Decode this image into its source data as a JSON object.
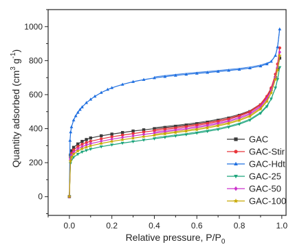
{
  "chart_data": {
    "type": "line",
    "title": "",
    "xlabel_main": "Relative pressure, P/P",
    "xlabel_sub": "0",
    "ylabel_main": "Quantity adsorbed (cm",
    "ylabel_sup1": "3",
    "ylabel_mid": " g",
    "ylabel_sup2": "-1",
    "ylabel_end": ")",
    "xlim": [
      -0.1,
      1.02
    ],
    "ylim": [
      -110,
      1100
    ],
    "x_ticks": [
      "0.0",
      "0.2",
      "0.4",
      "0.6",
      "0.8",
      "1.0"
    ],
    "y_ticks": [
      "0",
      "200",
      "400",
      "600",
      "800",
      "1000"
    ],
    "grid": false,
    "legend_position": "lower-right",
    "series": [
      {
        "name": "GAC",
        "color": "#3a3a3a",
        "marker": "square",
        "x": [
          0.0,
          0.005,
          0.01,
          0.02,
          0.04,
          0.06,
          0.08,
          0.1,
          0.15,
          0.2,
          0.25,
          0.3,
          0.35,
          0.4,
          0.45,
          0.5,
          0.55,
          0.6,
          0.65,
          0.7,
          0.75,
          0.8,
          0.85,
          0.9,
          0.93,
          0.95,
          0.97,
          0.98,
          0.99
        ],
        "y": [
          0,
          245,
          270,
          290,
          310,
          325,
          336,
          345,
          358,
          368,
          377,
          386,
          393,
          400,
          407,
          414,
          421,
          429,
          438,
          449,
          462,
          478,
          500,
          540,
          585,
          630,
          700,
          750,
          815
        ]
      },
      {
        "name": "GAC-Stir",
        "color": "#e8343a",
        "marker": "circle",
        "x": [
          0.0,
          0.005,
          0.01,
          0.02,
          0.04,
          0.06,
          0.08,
          0.1,
          0.15,
          0.2,
          0.25,
          0.3,
          0.35,
          0.4,
          0.45,
          0.5,
          0.55,
          0.6,
          0.65,
          0.7,
          0.75,
          0.8,
          0.85,
          0.9,
          0.93,
          0.95,
          0.97,
          0.98,
          0.99
        ],
        "y": [
          0,
          230,
          255,
          275,
          295,
          308,
          318,
          326,
          340,
          352,
          362,
          371,
          380,
          388,
          396,
          403,
          411,
          420,
          430,
          442,
          456,
          474,
          498,
          540,
          590,
          640,
          720,
          780,
          875
        ]
      },
      {
        "name": "GAC-Hdt",
        "color": "#1f6fe0",
        "marker": "triangle-up",
        "x": [
          0.0,
          0.003,
          0.006,
          0.01,
          0.02,
          0.03,
          0.04,
          0.05,
          0.06,
          0.08,
          0.1,
          0.12,
          0.15,
          0.18,
          0.2,
          0.25,
          0.3,
          0.35,
          0.4,
          0.45,
          0.5,
          0.55,
          0.6,
          0.65,
          0.7,
          0.75,
          0.8,
          0.85,
          0.9,
          0.93,
          0.95,
          0.97,
          0.98,
          0.99
        ],
        "y": [
          0,
          330,
          380,
          410,
          450,
          475,
          495,
          512,
          527,
          552,
          572,
          590,
          612,
          630,
          640,
          660,
          676,
          688,
          698,
          706,
          713,
          719,
          725,
          730,
          736,
          742,
          748,
          756,
          768,
          780,
          795,
          830,
          880,
          985
        ]
      },
      {
        "name": "GAC-25",
        "color": "#1aa37a",
        "marker": "triangle-down",
        "x": [
          0.0,
          0.005,
          0.01,
          0.02,
          0.04,
          0.06,
          0.08,
          0.1,
          0.15,
          0.2,
          0.25,
          0.3,
          0.35,
          0.4,
          0.45,
          0.5,
          0.55,
          0.6,
          0.65,
          0.7,
          0.75,
          0.8,
          0.85,
          0.9,
          0.93,
          0.95,
          0.97,
          0.98,
          0.99
        ],
        "y": [
          0,
          195,
          215,
          232,
          250,
          263,
          272,
          280,
          294,
          305,
          315,
          324,
          333,
          341,
          349,
          357,
          365,
          374,
          384,
          395,
          409,
          426,
          450,
          490,
          530,
          575,
          640,
          690,
          760
        ]
      },
      {
        "name": "GAC-50",
        "color": "#cc33cc",
        "marker": "diamond",
        "x": [
          0.0,
          0.005,
          0.01,
          0.02,
          0.04,
          0.06,
          0.08,
          0.1,
          0.15,
          0.2,
          0.25,
          0.3,
          0.35,
          0.4,
          0.45,
          0.5,
          0.55,
          0.6,
          0.65,
          0.7,
          0.75,
          0.8,
          0.85,
          0.9,
          0.93,
          0.95,
          0.97,
          0.98,
          0.99
        ],
        "y": [
          0,
          220,
          243,
          262,
          281,
          294,
          304,
          312,
          326,
          338,
          348,
          357,
          366,
          374,
          382,
          390,
          398,
          407,
          417,
          429,
          443,
          461,
          485,
          528,
          575,
          625,
          700,
          760,
          850
        ]
      },
      {
        "name": "GAC-100",
        "color": "#c8a800",
        "marker": "star",
        "x": [
          0.0,
          0.005,
          0.01,
          0.02,
          0.04,
          0.06,
          0.08,
          0.1,
          0.15,
          0.2,
          0.25,
          0.3,
          0.35,
          0.4,
          0.45,
          0.5,
          0.55,
          0.6,
          0.65,
          0.7,
          0.75,
          0.8,
          0.85,
          0.9,
          0.93,
          0.95,
          0.97,
          0.98,
          0.99
        ],
        "y": [
          0,
          210,
          232,
          250,
          269,
          282,
          291,
          299,
          313,
          325,
          335,
          344,
          353,
          361,
          369,
          377,
          385,
          394,
          404,
          416,
          430,
          448,
          472,
          515,
          560,
          610,
          690,
          745,
          830
        ]
      }
    ]
  }
}
